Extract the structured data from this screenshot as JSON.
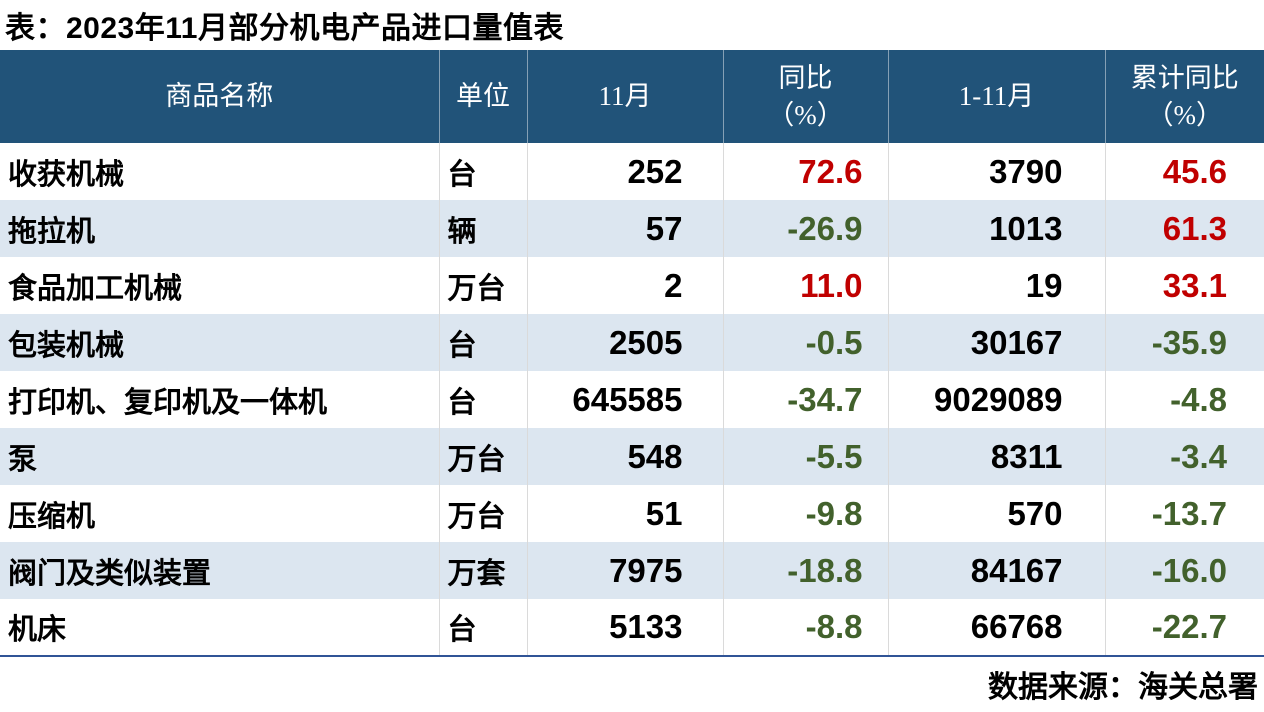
{
  "page": {
    "title": "表：2023年11月部分机电产品进口量值表",
    "source": "数据来源：海关总署"
  },
  "colors": {
    "header_bg": "#215379",
    "band_bg": "#dce6f0",
    "positive_red": "#c00000",
    "negative_green": "#42612c",
    "bottom_rule": "#305496"
  },
  "chart_data": {
    "type": "table",
    "title": "表：2023年11月部分机电产品进口量值表",
    "columns": [
      "商品名称",
      "单位",
      "11月",
      "同比（%）",
      "1-11月",
      "累计同比（%）"
    ],
    "header_lines": [
      [
        "商品名称"
      ],
      [
        "单位"
      ],
      [
        "11月"
      ],
      [
        "同比",
        "（%）"
      ],
      [
        "1-11月"
      ],
      [
        "累计同比",
        "（%）"
      ]
    ],
    "rows": [
      [
        "收获机械",
        "台",
        "252",
        "72.6",
        "3790",
        "45.6"
      ],
      [
        "拖拉机",
        "辆",
        "57",
        "-26.9",
        "1013",
        "61.3"
      ],
      [
        "食品加工机械",
        "万台",
        "2",
        "11.0",
        "19",
        "33.1"
      ],
      [
        "包装机械",
        "台",
        "2505",
        "-0.5",
        "30167",
        "-35.9"
      ],
      [
        "打印机、复印机及一体机",
        "台",
        "645585",
        "-34.7",
        "9029089",
        "-4.8"
      ],
      [
        "泵",
        "万台",
        "548",
        "-5.5",
        "8311",
        "-3.4"
      ],
      [
        "压缩机",
        "万台",
        "51",
        "-9.8",
        "570",
        "-13.7"
      ],
      [
        "阀门及类似装置",
        "万套",
        "7975",
        "-18.8",
        "84167",
        "-16.0"
      ],
      [
        "机床",
        "台",
        "5133",
        "-8.8",
        "66768",
        "-22.7"
      ]
    ],
    "value_color_rule": "同比/累计同比 positive = red, negative = dark green",
    "source": "数据来源：海关总署",
    "layout": {
      "banded_rows": true,
      "header_text_color": "#ffffff"
    }
  }
}
